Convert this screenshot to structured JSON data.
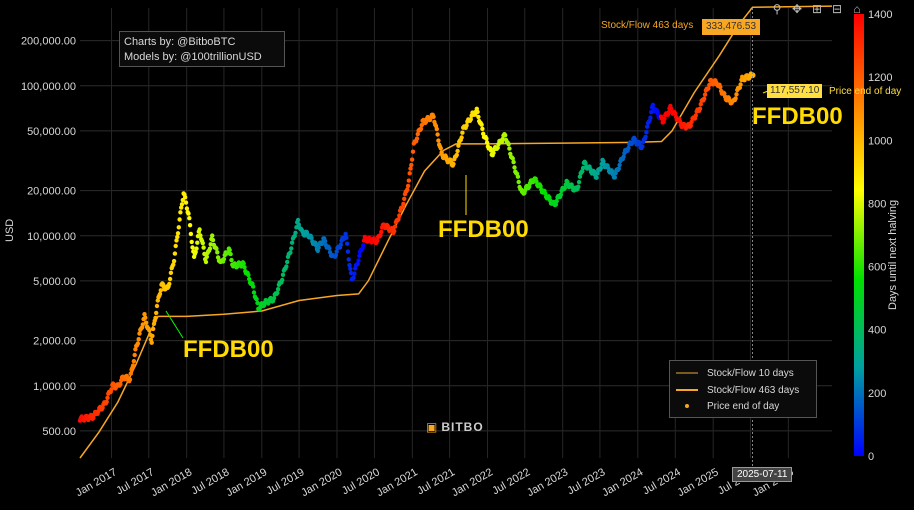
{
  "credits": {
    "line1": "Charts by: @BitboBTC",
    "line2": "Models by: @100trillionUSD"
  },
  "modebar": {
    "zoom_icon": "zoom-icon",
    "pan_icon": "pan-icon",
    "zoom_in_icon": "zoom-in-icon",
    "zoom_out_icon": "zoom-out-icon",
    "reset_icon": "reset-axes-icon"
  },
  "legend": {
    "items": [
      {
        "label": "Stock/Flow 10 days",
        "color": "#7a5a1e"
      },
      {
        "label": "Stock/Flow 463 days",
        "color": "#f7a723"
      },
      {
        "label": "Price end of day",
        "color": "#f7a723"
      }
    ]
  },
  "hover": {
    "sf_label": "Stock/Flow 463 days",
    "sf_value": "333,476.53",
    "price_value": "117,557.10",
    "price_label": "Price end of day",
    "date": "2025-07-11"
  },
  "annotations": [
    "FFDB00",
    "FFDB00",
    "FFDB00"
  ],
  "logo": "BITBO",
  "chart_data": {
    "type": "scatter",
    "ylabel": "USD",
    "colorbar_title": "Days until next halving",
    "y_scale": "log",
    "ylim": [
      330,
      330000
    ],
    "xlim": [
      "2016-08-01",
      "2026-08-01"
    ],
    "y_ticks": [
      {
        "v": 500,
        "label": "500.00"
      },
      {
        "v": 1000,
        "label": "1,000.00"
      },
      {
        "v": 2000,
        "label": "2,000.00"
      },
      {
        "v": 5000,
        "label": "5,000.00"
      },
      {
        "v": 10000,
        "label": "10,000.00"
      },
      {
        "v": 20000,
        "label": "20,000.00"
      },
      {
        "v": 50000,
        "label": "50,000.00"
      },
      {
        "v": 100000,
        "label": "100,000.00"
      },
      {
        "v": 200000,
        "label": "200,000.00"
      }
    ],
    "x_ticks": [
      "Jan 2017",
      "Jul 2017",
      "Jan 2018",
      "Jul 2018",
      "Jan 2019",
      "Jul 2019",
      "Jan 2020",
      "Jul 2020",
      "Jan 2021",
      "Jul 2021",
      "Jan 2022",
      "Jul 2022",
      "Jan 2023",
      "Jul 2023",
      "Jan 2024",
      "Jul 2024",
      "Jan 2025",
      "Jul 2025",
      "Jan 2026"
    ],
    "colorbar": {
      "min": 0,
      "max": 1400,
      "ticks": [
        0,
        200,
        400,
        600,
        800,
        1000,
        1200,
        1400
      ],
      "colors": [
        "#0000ff",
        "#00a0a0",
        "#00e000",
        "#ffff00",
        "#ff8000",
        "#ff0000"
      ]
    },
    "series": [
      {
        "name": "Price end of day",
        "points": [
          [
            "2016-08-01",
            600
          ],
          [
            "2016-10-01",
            620
          ],
          [
            "2016-12-01",
            760
          ],
          [
            "2017-01-05",
            1000
          ],
          [
            "2017-02-01",
            990
          ],
          [
            "2017-03-01",
            1150
          ],
          [
            "2017-04-01",
            1100
          ],
          [
            "2017-05-01",
            1800
          ],
          [
            "2017-06-10",
            2900
          ],
          [
            "2017-07-15",
            2000
          ],
          [
            "2017-08-10",
            3400
          ],
          [
            "2017-09-01",
            4700
          ],
          [
            "2017-10-01",
            4400
          ],
          [
            "2017-11-01",
            7000
          ],
          [
            "2017-12-17",
            19500
          ],
          [
            "2018-01-10",
            14000
          ],
          [
            "2018-02-06",
            7000
          ],
          [
            "2018-03-05",
            11000
          ],
          [
            "2018-04-05",
            6800
          ],
          [
            "2018-05-05",
            9700
          ],
          [
            "2018-06-15",
            6500
          ],
          [
            "2018-07-25",
            8200
          ],
          [
            "2018-08-15",
            6300
          ],
          [
            "2018-10-01",
            6500
          ],
          [
            "2018-11-20",
            4500
          ],
          [
            "2018-12-15",
            3300
          ],
          [
            "2019-01-20",
            3600
          ],
          [
            "2019-03-01",
            3800
          ],
          [
            "2019-04-10",
            5200
          ],
          [
            "2019-05-20",
            8000
          ],
          [
            "2019-06-26",
            12500
          ],
          [
            "2019-07-15",
            10500
          ],
          [
            "2019-08-15",
            10200
          ],
          [
            "2019-09-30",
            8200
          ],
          [
            "2019-10-27",
            9500
          ],
          [
            "2019-12-15",
            7100
          ],
          [
            "2020-02-12",
            10300
          ],
          [
            "2020-03-13",
            5000
          ],
          [
            "2020-04-15",
            7000
          ],
          [
            "2020-05-15",
            9500
          ],
          [
            "2020-07-15",
            9200
          ],
          [
            "2020-08-15",
            11800
          ],
          [
            "2020-10-01",
            10700
          ],
          [
            "2020-11-15",
            16000
          ],
          [
            "2020-12-15",
            23000
          ],
          [
            "2021-01-08",
            40000
          ],
          [
            "2021-02-20",
            57000
          ],
          [
            "2021-04-14",
            63000
          ],
          [
            "2021-05-23",
            35000
          ],
          [
            "2021-06-22",
            32000
          ],
          [
            "2021-07-20",
            30000
          ],
          [
            "2021-09-05",
            51000
          ],
          [
            "2021-10-20",
            64000
          ],
          [
            "2021-11-10",
            68000
          ],
          [
            "2021-12-15",
            47000
          ],
          [
            "2022-01-22",
            35000
          ],
          [
            "2022-03-28",
            47000
          ],
          [
            "2022-05-12",
            29000
          ],
          [
            "2022-06-18",
            19000
          ],
          [
            "2022-08-15",
            24000
          ],
          [
            "2022-10-01",
            19500
          ],
          [
            "2022-11-21",
            16000
          ],
          [
            "2023-01-20",
            22500
          ],
          [
            "2023-03-10",
            20000
          ],
          [
            "2023-04-14",
            30500
          ],
          [
            "2023-06-15",
            25000
          ],
          [
            "2023-07-14",
            31000
          ],
          [
            "2023-09-11",
            25000
          ],
          [
            "2023-10-24",
            34500
          ],
          [
            "2023-12-10",
            44000
          ],
          [
            "2024-01-23",
            39000
          ],
          [
            "2024-03-14",
            73000
          ],
          [
            "2024-05-01",
            58000
          ],
          [
            "2024-06-07",
            71000
          ],
          [
            "2024-08-05",
            54000
          ],
          [
            "2024-09-06",
            53500
          ],
          [
            "2024-10-29",
            72000
          ],
          [
            "2024-12-17",
            106000
          ],
          [
            "2025-01-20",
            105000
          ],
          [
            "2025-02-28",
            84000
          ],
          [
            "2025-04-08",
            77000
          ],
          [
            "2025-05-22",
            111000
          ],
          [
            "2025-07-11",
            117557
          ]
        ]
      },
      {
        "name": "Stock/Flow 463 days",
        "points": [
          [
            "2016-08-01",
            330
          ],
          [
            "2016-11-01",
            490
          ],
          [
            "2017-02-01",
            780
          ],
          [
            "2017-05-01",
            1400
          ],
          [
            "2017-07-01",
            2200
          ],
          [
            "2017-08-15",
            2900
          ],
          [
            "2018-01-01",
            2900
          ],
          [
            "2018-07-01",
            3000
          ],
          [
            "2019-01-01",
            3150
          ],
          [
            "2019-07-01",
            3700
          ],
          [
            "2020-01-01",
            4000
          ],
          [
            "2020-04-15",
            4100
          ],
          [
            "2020-06-01",
            5000
          ],
          [
            "2020-09-01",
            9000
          ],
          [
            "2020-12-01",
            16000
          ],
          [
            "2021-03-01",
            27000
          ],
          [
            "2021-06-01",
            37000
          ],
          [
            "2021-08-01",
            41000
          ],
          [
            "2022-01-01",
            41000
          ],
          [
            "2023-01-01",
            41500
          ],
          [
            "2024-01-01",
            42000
          ],
          [
            "2024-04-25",
            42500
          ],
          [
            "2024-06-15",
            50000
          ],
          [
            "2024-10-01",
            90000
          ],
          [
            "2025-02-01",
            160000
          ],
          [
            "2025-05-01",
            250000
          ],
          [
            "2025-07-11",
            333476
          ],
          [
            "2026-08-01",
            340000
          ]
        ]
      }
    ]
  }
}
